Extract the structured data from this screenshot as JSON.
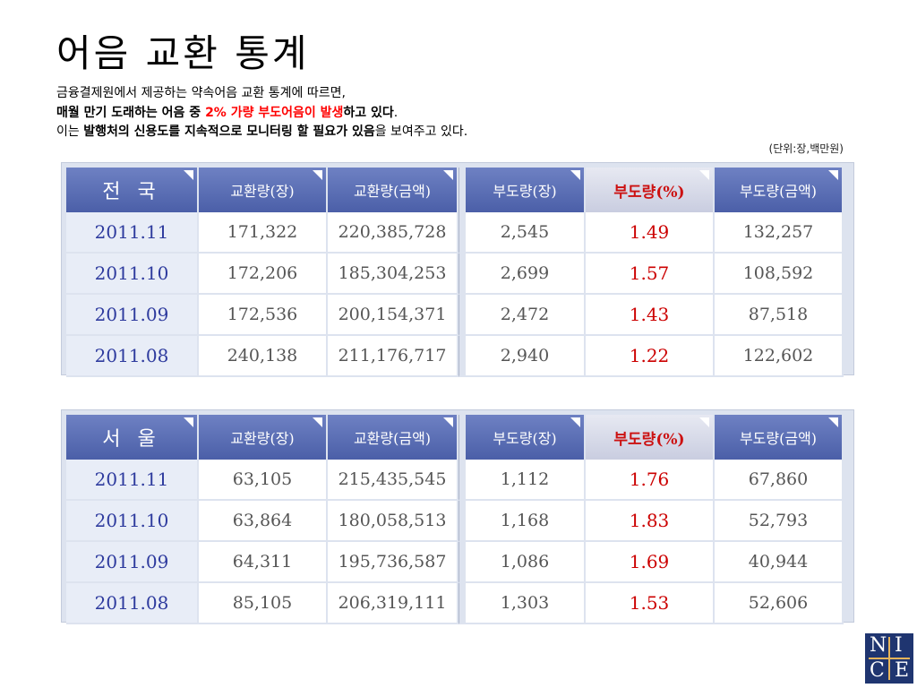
{
  "title": "어음 교환 통계",
  "intro": {
    "line1": "금융결제원에서 제공하는 약속어음 교환 통계에 따르면,",
    "line2_bold_a": "매월  만기 도래하는 어음 중 ",
    "line2_red": "2% 가량 부도어음이 발생",
    "line2_bold_b": "하고 있다",
    "line2_tail": ".",
    "line3_a": "이는 ",
    "line3_bold": "발행처의 신용도를 지속적으로 모니터링 할 필요가 있음",
    "line3_b": "을 보여주고 있다."
  },
  "unit_note": "(단위:장,백만원)",
  "tables": [
    {
      "region": "전 국",
      "headers": [
        "교환량(장)",
        "교환량(금액)",
        "부도량(장)",
        "부도량(%)",
        "부도량(금액)"
      ],
      "rows": [
        {
          "date": "2011.11",
          "v1": "171,322",
          "v2": "220,385,728",
          "v3": "2,545",
          "v4": "1.49",
          "v5": "132,257"
        },
        {
          "date": "2011.10",
          "v1": "172,206",
          "v2": "185,304,253",
          "v3": "2,699",
          "v4": "1.57",
          "v5": "108,592"
        },
        {
          "date": "2011.09",
          "v1": "172,536",
          "v2": "200,154,371",
          "v3": "2,472",
          "v4": "1.43",
          "v5": "87,518"
        },
        {
          "date": "2011.08",
          "v1": "240,138",
          "v2": "211,176,717",
          "v3": "2,940",
          "v4": "1.22",
          "v5": "122,602"
        }
      ]
    },
    {
      "region": "서 울",
      "headers": [
        "교환량(장)",
        "교환량(금액)",
        "부도량(장)",
        "부도량(%)",
        "부도량(금액)"
      ],
      "rows": [
        {
          "date": "2011.11",
          "v1": "63,105",
          "v2": "215,435,545",
          "v3": "1,112",
          "v4": "1.76",
          "v5": "67,860"
        },
        {
          "date": "2011.10",
          "v1": "63,864",
          "v2": "180,058,513",
          "v3": "1,168",
          "v4": "1.83",
          "v5": "52,793"
        },
        {
          "date": "2011.09",
          "v1": "64,311",
          "v2": "195,736,587",
          "v3": "1,086",
          "v4": "1.69",
          "v5": "40,944"
        },
        {
          "date": "2011.08",
          "v1": "85,105",
          "v2": "206,319,111",
          "v3": "1,303",
          "v4": "1.53",
          "v5": "52,606"
        }
      ]
    }
  ],
  "logo": {
    "n": "N",
    "i": "I",
    "c": "C",
    "e": "E"
  },
  "colors": {
    "header_blue": "#4b5fa8",
    "accent_red": "#cc0000",
    "date_blue": "#2e3b9e",
    "logo_navy": "#1f3570"
  }
}
